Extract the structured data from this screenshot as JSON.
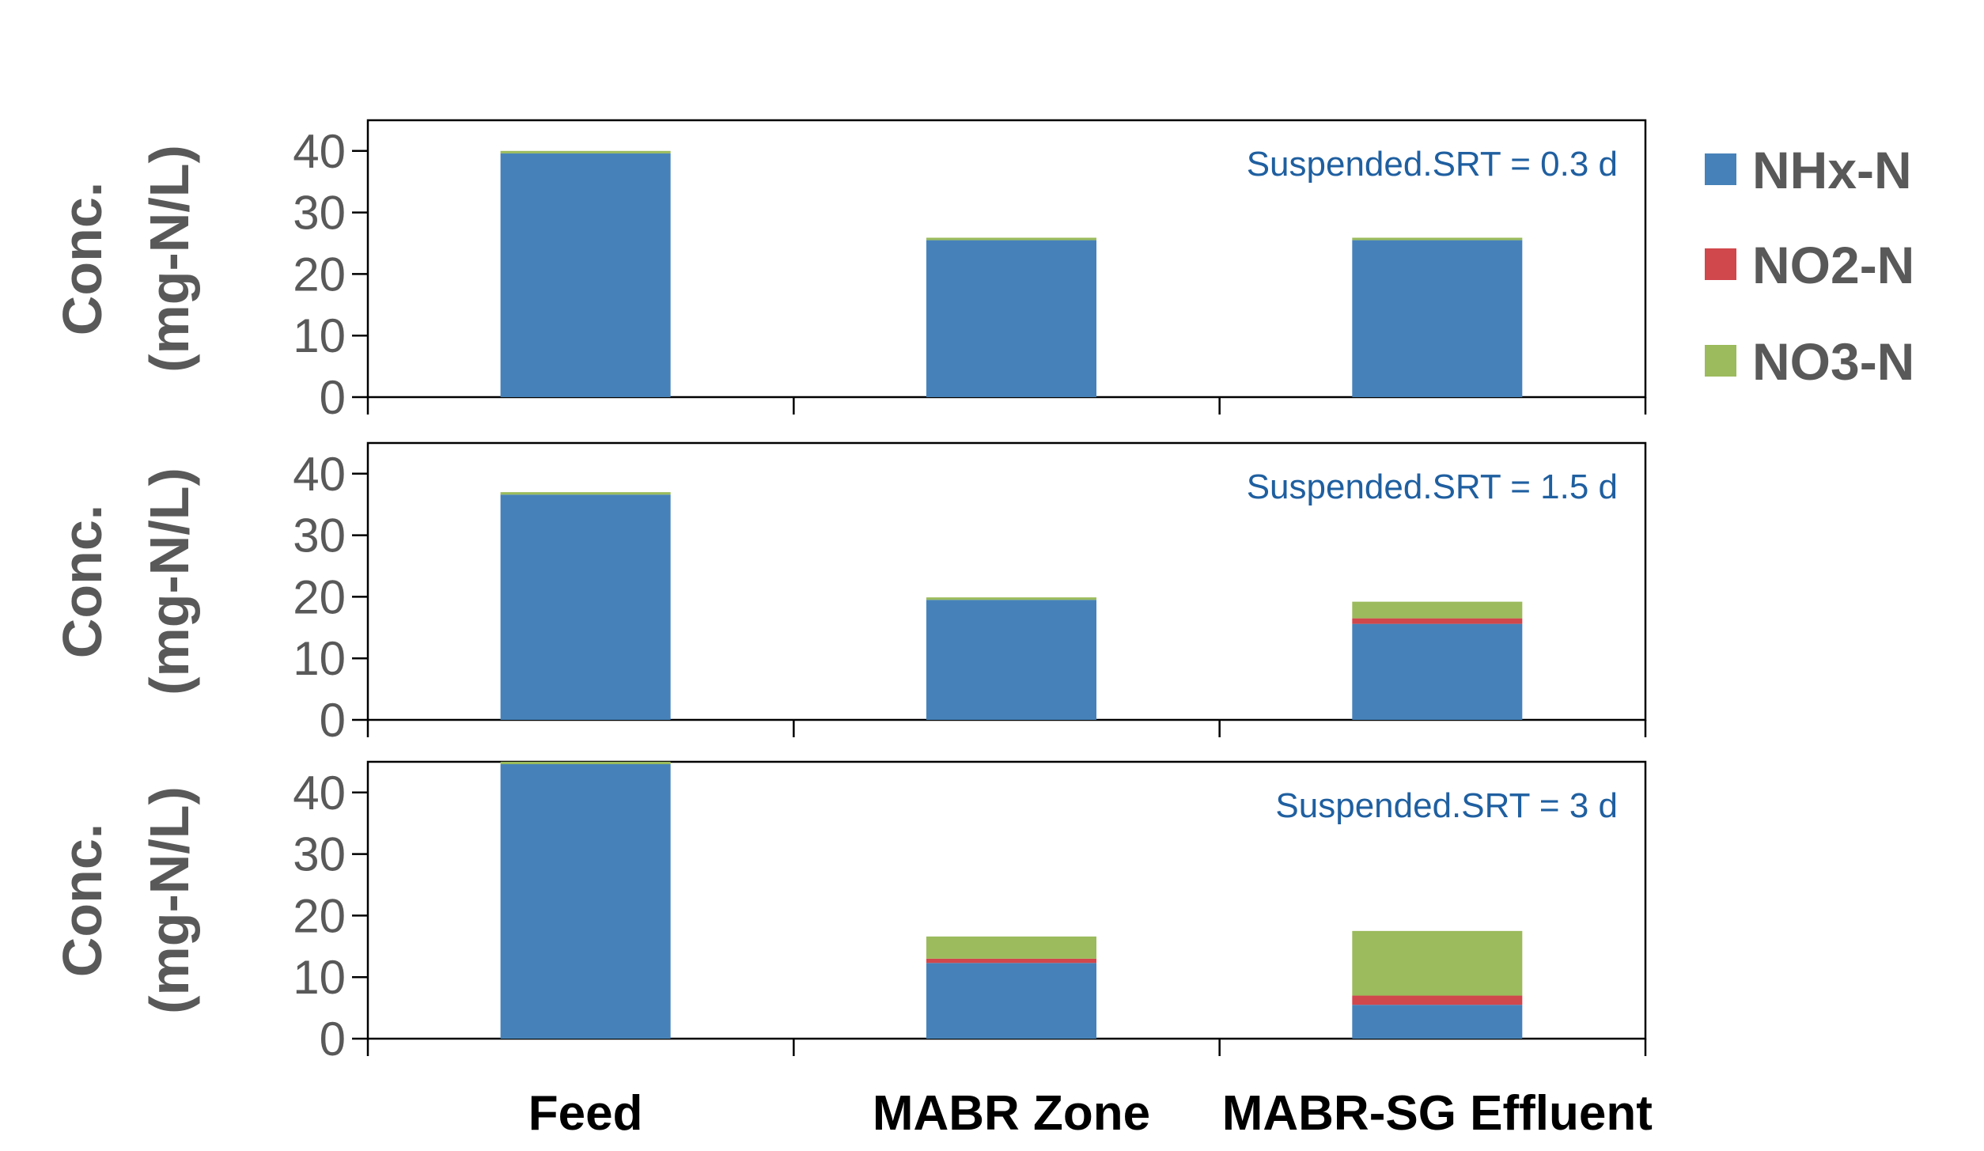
{
  "chart_data": {
    "type": "bar",
    "stacked": true,
    "categories": [
      "Feed",
      "MABR Zone",
      "MABR-SG Effluent"
    ],
    "ylabel_line1": "Conc.",
    "ylabel_line2": "(mg-N/L)",
    "ylim": [
      0,
      45
    ],
    "yticks": [
      "0",
      "10",
      "20",
      "30",
      "40"
    ],
    "legend_position": "right",
    "legend": [
      {
        "name": "NHx-N",
        "color": "#4682B9"
      },
      {
        "name": "NO2-N",
        "color": "#D0474C"
      },
      {
        "name": "NO3-N",
        "color": "#9BBB5C"
      }
    ],
    "panels": [
      {
        "annotation": "Suspended.SRT  = 0.3 d",
        "series": [
          {
            "name": "NHx-N",
            "values": [
              39.6,
              25.5,
              25.5
            ]
          },
          {
            "name": "NO2-N",
            "values": [
              0.0,
              0.0,
              0.0
            ]
          },
          {
            "name": "NO3-N",
            "values": [
              0.4,
              0.4,
              0.4
            ]
          }
        ]
      },
      {
        "annotation": "Suspended.SRT  = 1.5 d",
        "series": [
          {
            "name": "NHx-N",
            "values": [
              36.6,
              19.5,
              15.6
            ]
          },
          {
            "name": "NO2-N",
            "values": [
              0.0,
              0.0,
              0.9
            ]
          },
          {
            "name": "NO3-N",
            "values": [
              0.4,
              0.4,
              2.7
            ]
          }
        ]
      },
      {
        "annotation": "Suspended.SRT  = 3 d",
        "series": [
          {
            "name": "NHx-N",
            "values": [
              44.6,
              12.3,
              5.5
            ]
          },
          {
            "name": "NO2-N",
            "values": [
              0.0,
              0.7,
              1.5
            ]
          },
          {
            "name": "NO3-N",
            "values": [
              0.4,
              3.6,
              10.5
            ]
          }
        ]
      }
    ]
  }
}
